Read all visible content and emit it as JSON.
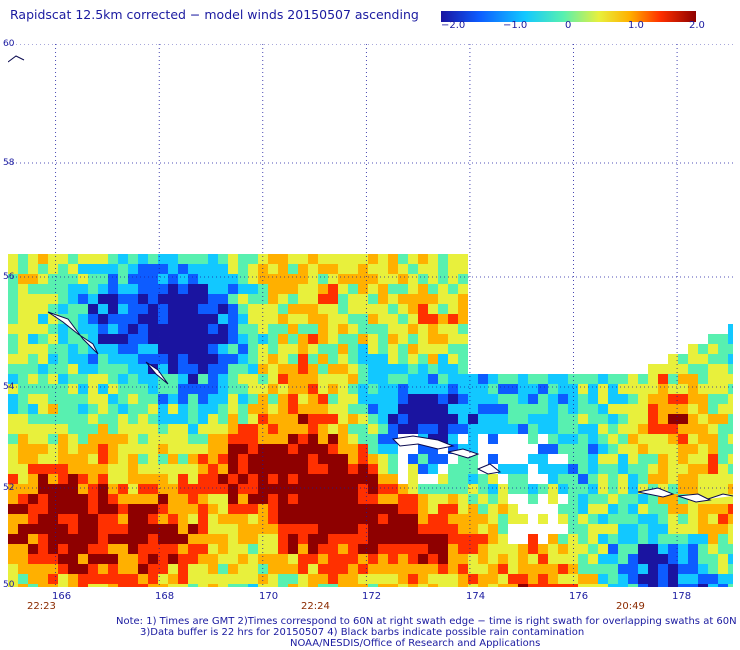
{
  "title": "Rapidscat 12.5km corrected − model winds 20150507 ascending",
  "colorbar": {
    "ticks": [
      "−2.0",
      "−1.0",
      "0",
      "1.0",
      "2.0"
    ],
    "colors": [
      "#1a14a0",
      "#0d5cff",
      "#12c8ff",
      "#58f0b0",
      "#e8f03c",
      "#ffb000",
      "#ff3000",
      "#8e0000"
    ]
  },
  "lat_labels": [
    "60",
    "58",
    "56",
    "54",
    "52",
    "50"
  ],
  "lon_labels": [
    "166",
    "168",
    "170",
    "172",
    "174",
    "176",
    "178"
  ],
  "time_labels": [
    "22:23",
    "22:24",
    "20:49"
  ],
  "notes": {
    "line1": "Note: 1) Times are GMT 2)Times correspond to 60N at right swath edge − time is right swath for overlapping swaths at 60N",
    "line2": "3)Data buffer is 22 hrs for 20150507 4) Black barbs indicate possible rain contamination",
    "line3": "NOAA/NESDIS/Office of Research and Applications"
  },
  "colors": {
    "text": "#1a1aa0",
    "time_text": "#8b2a00",
    "grid": "#1a1aa0"
  }
}
